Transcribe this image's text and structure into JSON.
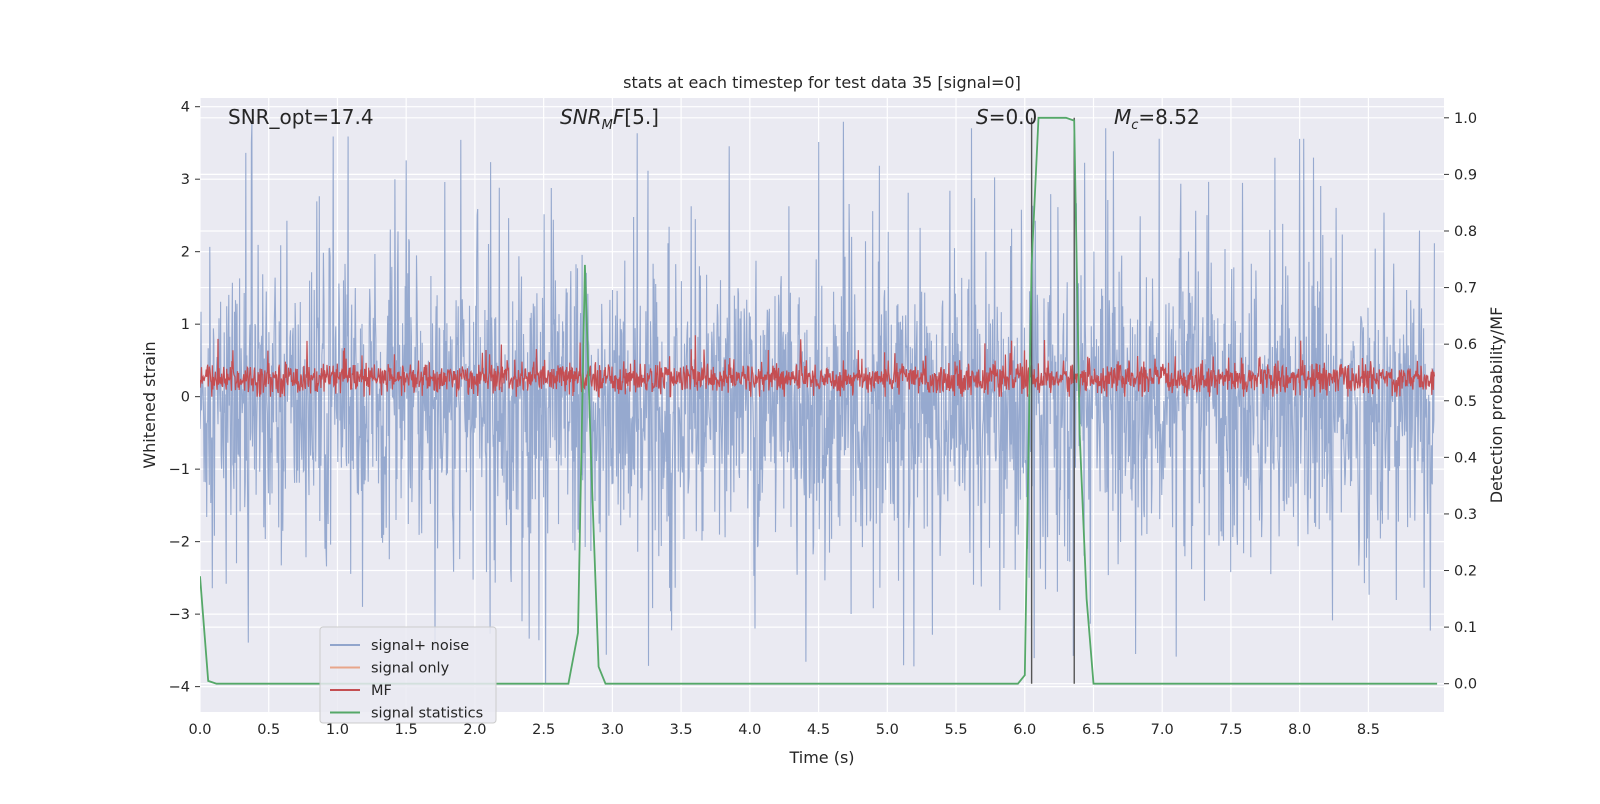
{
  "chart_data": {
    "type": "line",
    "title": "stats at each timestep for test data 35 [signal=0]",
    "xlabel": "Time (s)",
    "ylabel_left": "Whitened strain",
    "ylabel_right": "Detection probability/MF",
    "xlim": [
      0,
      9.05
    ],
    "ylim_left": [
      -4.35,
      4.12
    ],
    "ylim_right": [
      -0.05,
      1.035
    ],
    "x_ticks": [
      "0.0",
      "0.5",
      "1.0",
      "1.5",
      "2.0",
      "2.5",
      "3.0",
      "3.5",
      "4.0",
      "4.5",
      "5.0",
      "5.5",
      "6.0",
      "6.5",
      "7.0",
      "7.5",
      "8.0",
      "8.5"
    ],
    "y_ticks_left": [
      "−4",
      "−3",
      "−2",
      "−1",
      "0",
      "1",
      "2",
      "3",
      "4"
    ],
    "y_ticks_right": [
      "0.0",
      "0.1",
      "0.2",
      "0.3",
      "0.4",
      "0.5",
      "0.6",
      "0.7",
      "0.8",
      "0.9",
      "1.0"
    ],
    "grid": true,
    "annotations": {
      "snr_opt": "SNR_opt=17.4",
      "snr_mf": "[5.]",
      "s_value": "=0.0",
      "mc_value": "=8.52"
    },
    "legend": {
      "placement": "lower-left",
      "entries": [
        {
          "label": "signal+ noise",
          "color": "#91a5cc"
        },
        {
          "label": "signal only",
          "color": "#e8a58a"
        },
        {
          "label": "MF",
          "color": "#c44e52"
        },
        {
          "label": "signal statistics",
          "color": "#55a868"
        }
      ]
    },
    "series": [
      {
        "name": "signal+ noise",
        "axis": "left",
        "color": "#91a5cc",
        "description_values": {
          "typical_range": [
            -1.7,
            1.4
          ],
          "peak_max": 3.8,
          "peak_min": -4.0
        }
      },
      {
        "name": "signal only",
        "axis": "left",
        "color": "#e8a58a",
        "values": []
      },
      {
        "name": "MF",
        "axis": "left",
        "color": "#c44e52",
        "description_values": {
          "baseline": 0.0,
          "typical_max": 0.55,
          "peak_max": 1.0
        }
      },
      {
        "name": "signal statistics",
        "axis": "right",
        "color": "#55a868",
        "x": [
          0.0,
          0.06,
          0.12,
          2.68,
          2.75,
          2.8,
          2.85,
          2.9,
          2.95,
          5.95,
          6.0,
          6.05,
          6.1,
          6.15,
          6.3,
          6.36,
          6.4,
          6.45,
          6.5,
          9.0
        ],
        "y": [
          0.19,
          0.005,
          0.0,
          0.0,
          0.09,
          0.74,
          0.36,
          0.03,
          0.0,
          0.0,
          0.015,
          0.74,
          1.0,
          1.0,
          1.0,
          0.995,
          0.44,
          0.15,
          0.0,
          0.0
        ]
      }
    ],
    "vertical_lines": [
      6.05,
      6.36
    ]
  }
}
